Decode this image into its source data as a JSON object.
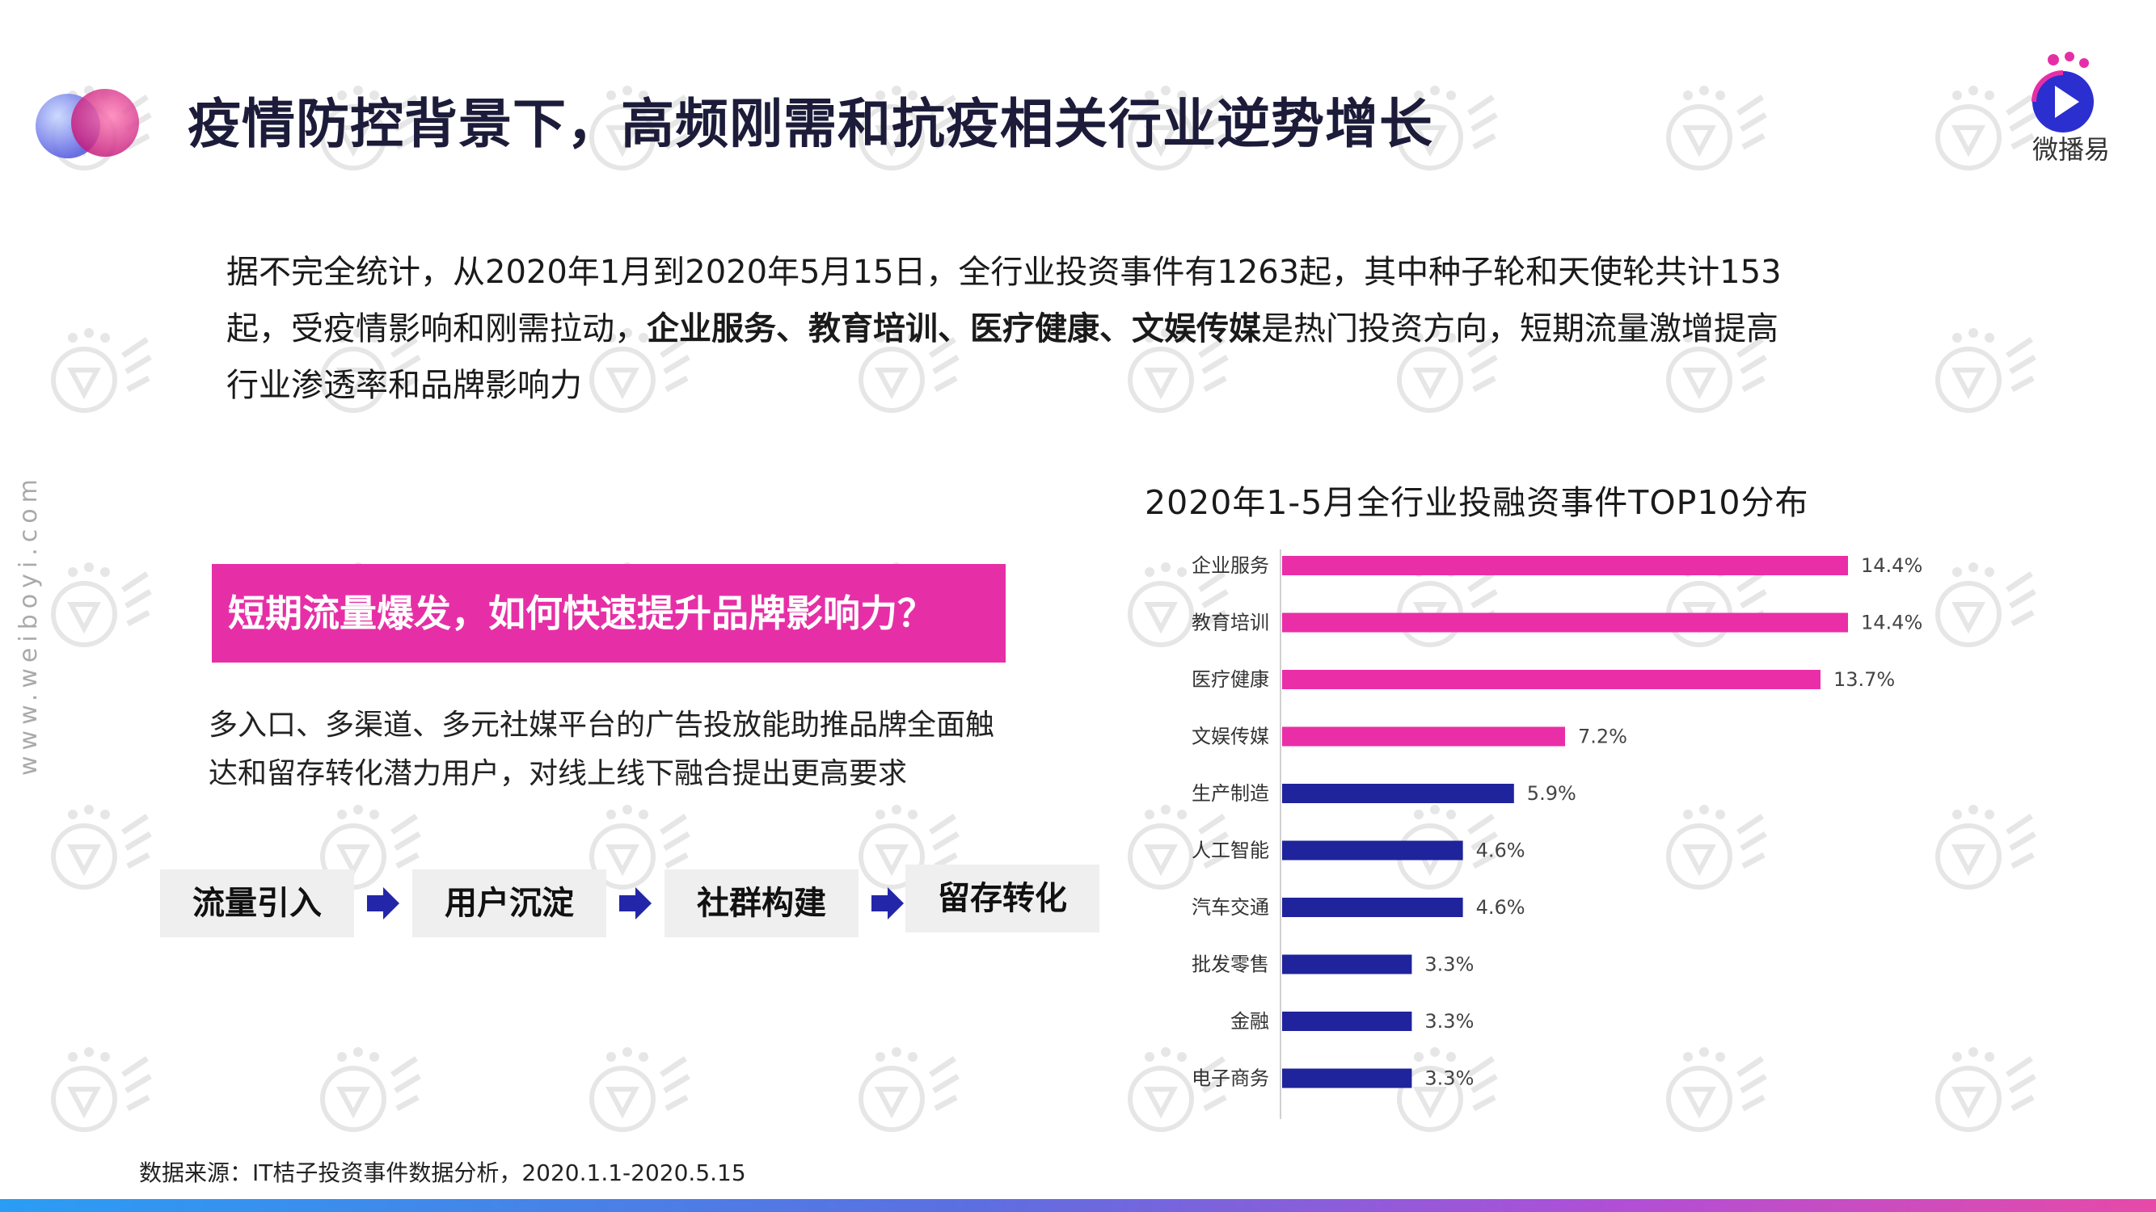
{
  "header": {
    "title": "疫情防控背景下，高频刚需和抗疫相关行业逆势增长",
    "logo_text": "微播易"
  },
  "side_url": "www.weiboyi.com",
  "intro": {
    "line1": "据不完全统计，从2020年1月到2020年5月15日，全行业投资事件有1263起，其中种子轮和天使轮共计153",
    "line2_pre": "起，受疫情影响和刚需拉动，",
    "line2_bold": "企业服务、教育培训、医疗健康、文娱传媒",
    "line2_post": "是热门投资方向，短期流量激增提高",
    "line3": "行业渗透率和品牌影响力"
  },
  "question": "短期流量爆发，如何快速提升品牌影响力？",
  "description": {
    "line1": "多入口、多渠道、多元社媒平台的广告投放能助推品牌全面触",
    "line2": "达和留存转化潜力用户，对线上线下融合提出更高要求"
  },
  "flow": [
    "流量引入",
    "用户沉淀",
    "社群构建",
    "留存转化"
  ],
  "chart_data": {
    "type": "bar",
    "orientation": "horizontal",
    "title": "2020年1-5月全行业投融资事件TOP10分布",
    "categories": [
      "企业服务",
      "教育培训",
      "医疗健康",
      "文娱传媒",
      "生产制造",
      "人工智能",
      "汽车交通",
      "批发零售",
      "金融",
      "电子商务"
    ],
    "values": [
      14.4,
      14.4,
      13.7,
      7.2,
      5.9,
      4.6,
      4.6,
      3.3,
      3.3,
      3.3
    ],
    "value_labels": [
      "14.4%",
      "14.4%",
      "13.7%",
      "7.2%",
      "5.9%",
      "4.6%",
      "4.6%",
      "3.3%",
      "3.3%",
      "3.3%"
    ],
    "unit": "%",
    "colors": [
      "#ea2ea7",
      "#ea2ea7",
      "#ea2ea7",
      "#ea2ea7",
      "#1f239c",
      "#1f239c",
      "#1f239c",
      "#1f239c",
      "#1f239c",
      "#1f239c"
    ],
    "xlim": [
      0,
      14.4
    ],
    "grid": false
  },
  "source": "数据来源：IT桔子投资事件数据分析，2020.1.1-2020.5.15",
  "colors": {
    "accent_pink": "#e62fa6",
    "accent_navy": "#1f239c",
    "title_color": "#1c1c3a"
  }
}
